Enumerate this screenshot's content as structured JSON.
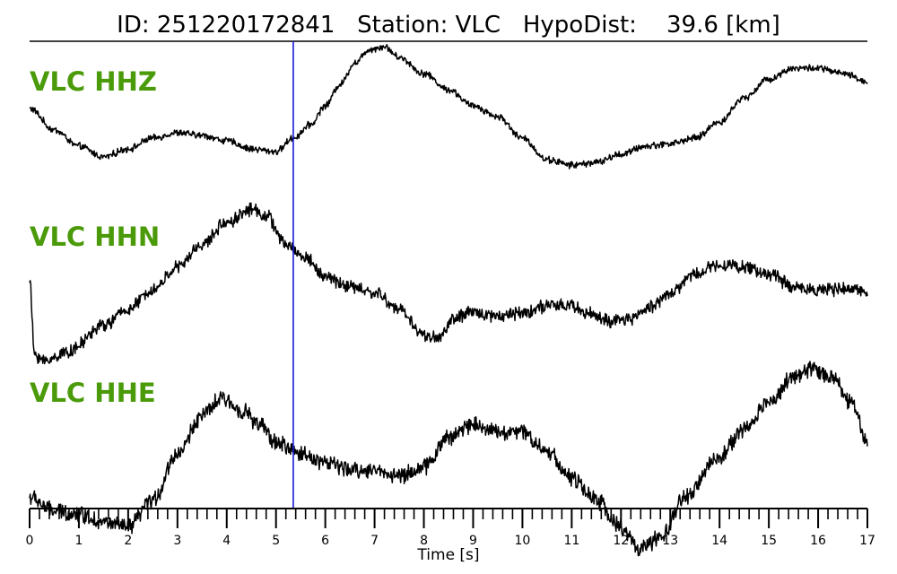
{
  "chart_data": {
    "type": "line",
    "title": "ID: 251220172841   Station: VLC   HypoDist:    39.6 [km]",
    "xlabel": "Time [s]",
    "xlim": [
      0,
      17
    ],
    "x_ticks": [
      "0",
      "1",
      "2",
      "3",
      "4",
      "5",
      "6",
      "7",
      "8",
      "9",
      "10",
      "11",
      "12",
      "13",
      "14",
      "15",
      "16",
      "17"
    ],
    "minor_tick_step": 0.2,
    "grid": false,
    "label_color": "#4a9a0a",
    "trace_color": "#000000",
    "marker": {
      "time": 5.35,
      "color": "#1a1adb"
    },
    "series": [
      {
        "name": "VLC HHZ",
        "x": [
          0,
          0.5,
          1,
          1.5,
          2,
          2.5,
          3,
          3.5,
          4,
          4.5,
          5,
          5.35,
          5.7,
          6,
          6.3,
          6.6,
          6.9,
          7.2,
          7.5,
          8,
          8.5,
          9,
          9.5,
          10,
          10.5,
          11,
          11.5,
          12,
          12.5,
          13,
          13.5,
          14,
          14.5,
          15,
          15.5,
          16,
          16.5,
          17
        ],
        "values": [
          0.85,
          0.45,
          0.15,
          -0.05,
          0.1,
          0.3,
          0.4,
          0.35,
          0.25,
          0.1,
          0.05,
          0.3,
          0.55,
          0.9,
          1.3,
          1.7,
          1.95,
          2.0,
          1.8,
          1.5,
          1.2,
          0.9,
          0.7,
          0.3,
          -0.1,
          -0.2,
          -0.15,
          0.0,
          0.15,
          0.2,
          0.3,
          0.6,
          1.05,
          1.4,
          1.6,
          1.6,
          1.5,
          1.35
        ],
        "noise": 0.05
      },
      {
        "name": "VLC HHN",
        "x": [
          0,
          0.1,
          0.3,
          0.8,
          1.5,
          2,
          2.5,
          3,
          3.5,
          4,
          4.5,
          4.8,
          5.2,
          5.6,
          6,
          6.5,
          7,
          7.5,
          8,
          8.3,
          8.6,
          9,
          9.5,
          10,
          10.5,
          11,
          11.3,
          11.8,
          12.2,
          12.6,
          13,
          13.5,
          14,
          14.5,
          15,
          15.5,
          16,
          16.5,
          17
        ],
        "values": [
          0.55,
          -0.6,
          -0.7,
          -0.55,
          -0.15,
          0.1,
          0.4,
          0.75,
          1.1,
          1.45,
          1.65,
          1.55,
          1.1,
          0.9,
          0.6,
          0.45,
          0.35,
          0.1,
          -0.3,
          -0.35,
          -0.05,
          0.05,
          0.0,
          0.05,
          0.15,
          0.15,
          0.05,
          -0.1,
          -0.05,
          0.15,
          0.35,
          0.65,
          0.8,
          0.75,
          0.65,
          0.45,
          0.4,
          0.4,
          0.4
        ],
        "noise": 0.08
      },
      {
        "name": "VLC HHE",
        "x": [
          0,
          0.5,
          1,
          1.5,
          2,
          2.5,
          3,
          3.5,
          3.9,
          4.3,
          4.7,
          5,
          5.5,
          6,
          6.5,
          7,
          7.5,
          8,
          8.5,
          9,
          9.5,
          10,
          10.5,
          11,
          11.5,
          12,
          12.4,
          12.8,
          13.3,
          14,
          14.5,
          15,
          15.5,
          15.9,
          16.3,
          16.7,
          17
        ],
        "values": [
          -0.7,
          -0.95,
          -1.0,
          -1.15,
          -1.25,
          -0.75,
          0.1,
          0.8,
          1.1,
          0.9,
          0.6,
          0.3,
          0.1,
          -0.05,
          -0.2,
          -0.2,
          -0.3,
          -0.15,
          0.4,
          0.65,
          0.5,
          0.5,
          0.15,
          -0.35,
          -0.75,
          -1.25,
          -1.65,
          -1.45,
          -0.7,
          0.05,
          0.55,
          1.05,
          1.5,
          1.65,
          1.5,
          1.0,
          0.3
        ],
        "noise": 0.12
      }
    ]
  }
}
